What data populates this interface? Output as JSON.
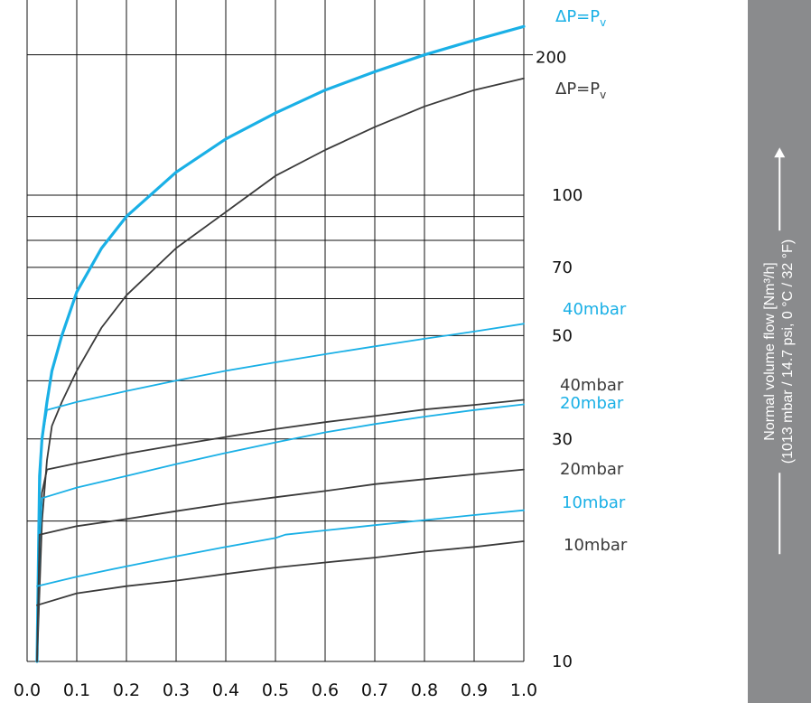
{
  "chart_data": {
    "type": "line",
    "title": "",
    "xlabel": "",
    "ylabel": "Normal volume flow [Nm³/h]",
    "ylabel_sub": "(1013 mbar / 14.7 psi, 0 °C / 32 °F)",
    "xlim": [
      0.0,
      1.0
    ],
    "ylim": [
      10,
      250
    ],
    "y_scale": "log",
    "x_ticks": [
      "0.0",
      "0.1",
      "0.2",
      "0.3",
      "0.4",
      "0.5",
      "0.6",
      "0.7",
      "0.8",
      "0.9",
      "1.0"
    ],
    "x_tick_values": [
      0.0,
      0.1,
      0.2,
      0.3,
      0.4,
      0.5,
      0.6,
      0.7,
      0.8,
      0.9,
      1.0
    ],
    "y_tick_labels": [
      {
        "value": 10,
        "label": "10"
      },
      {
        "value": 30,
        "label": "30"
      },
      {
        "value": 50,
        "label": "50"
      },
      {
        "value": 70,
        "label": "70"
      },
      {
        "value": 100,
        "label": "100"
      },
      {
        "value": 200,
        "label": "200"
      }
    ],
    "y_gridlines": [
      10,
      20,
      30,
      40,
      50,
      60,
      70,
      80,
      90,
      100,
      200
    ],
    "grid": true,
    "colors": {
      "blue": "#1ab0e6",
      "black": "#3a3a3a",
      "grid": "#111111",
      "panel": "#8a8b8d"
    },
    "series": [
      {
        "name": "ΔP=Pv",
        "color": "blue",
        "width": 3.2,
        "x": [
          0.02,
          0.025,
          0.03,
          0.04,
          0.05,
          0.07,
          0.1,
          0.15,
          0.2,
          0.3,
          0.4,
          0.5,
          0.6,
          0.7,
          0.8,
          0.9,
          1.0
        ],
        "y": [
          10,
          25,
          30,
          36,
          42,
          50,
          62,
          77,
          90,
          112,
          132,
          150,
          168,
          184,
          200,
          215,
          230
        ]
      },
      {
        "name": "ΔP=Pv",
        "color": "black",
        "width": 1.8,
        "x": [
          0.02,
          0.03,
          0.04,
          0.05,
          0.07,
          0.1,
          0.15,
          0.2,
          0.3,
          0.4,
          0.5,
          0.6,
          0.7,
          0.8,
          0.9,
          1.0
        ],
        "y": [
          10,
          20,
          27,
          32,
          36,
          42,
          52,
          61,
          77,
          92,
          110,
          125,
          140,
          155,
          168,
          178
        ]
      },
      {
        "name": "40mbar",
        "color": "blue",
        "width": 1.8,
        "x": [
          0.02,
          0.025,
          0.03,
          0.04,
          0.1,
          0.2,
          0.3,
          0.4,
          0.5,
          0.6,
          0.7,
          0.8,
          0.9,
          1.0
        ],
        "y": [
          10,
          22,
          30,
          34.6,
          36,
          38,
          40,
          42,
          43.8,
          45.6,
          47.4,
          49.2,
          51,
          53
        ]
      },
      {
        "name": "40mbar",
        "color": "black",
        "width": 1.8,
        "x": [
          0.02,
          0.025,
          0.03,
          0.04,
          0.1,
          0.2,
          0.3,
          0.4,
          0.5,
          0.6,
          0.7,
          0.8,
          0.9,
          1.0
        ],
        "y": [
          10,
          18,
          23,
          25.8,
          26.6,
          27.9,
          29.1,
          30.3,
          31.5,
          32.6,
          33.6,
          34.7,
          35.5,
          36.4
        ]
      },
      {
        "name": "20mbar",
        "color": "blue",
        "width": 1.8,
        "x": [
          0.02,
          0.025,
          0.03,
          0.1,
          0.2,
          0.3,
          0.4,
          0.5,
          0.6,
          0.7,
          0.8,
          0.9,
          1.0
        ],
        "y": [
          10,
          18,
          22.4,
          23.6,
          25,
          26.5,
          28,
          29.5,
          31,
          32.3,
          33.5,
          34.6,
          35.6
        ]
      },
      {
        "name": "20mbar",
        "color": "black",
        "width": 1.8,
        "x": [
          0.02,
          0.025,
          0.1,
          0.2,
          0.3,
          0.4,
          0.5,
          0.6,
          0.7,
          0.8,
          0.9,
          1.0
        ],
        "y": [
          10,
          18.7,
          19.5,
          20.2,
          21,
          21.8,
          22.5,
          23.2,
          24,
          24.6,
          25.2,
          25.8
        ]
      },
      {
        "name": "10mbar",
        "color": "blue",
        "width": 1.8,
        "x": [
          0.02,
          0.1,
          0.2,
          0.3,
          0.4,
          0.5,
          0.52,
          0.6,
          0.7,
          0.8,
          0.9,
          1.0
        ],
        "y": [
          14.5,
          15.2,
          16.0,
          16.8,
          17.6,
          18.4,
          18.7,
          19.1,
          19.6,
          20.1,
          20.6,
          21.1
        ]
      },
      {
        "name": "10mbar",
        "color": "black",
        "width": 1.8,
        "x": [
          0.02,
          0.1,
          0.2,
          0.3,
          0.4,
          0.5,
          0.6,
          0.7,
          0.8,
          0.9,
          1.0
        ],
        "y": [
          13.2,
          14.0,
          14.5,
          14.9,
          15.4,
          15.9,
          16.3,
          16.7,
          17.2,
          17.6,
          18.1
        ]
      }
    ],
    "series_labels": [
      {
        "text": "ΔP=P",
        "sub": "v",
        "color": "blue"
      },
      {
        "text": "ΔP=P",
        "sub": "v",
        "color": "black"
      },
      {
        "text": "40mbar",
        "color": "blue"
      },
      {
        "text": "40mbar",
        "color": "black"
      },
      {
        "text": "20mbar",
        "color": "blue"
      },
      {
        "text": "20mbar",
        "color": "black"
      },
      {
        "text": "10mbar",
        "color": "blue"
      },
      {
        "text": "10mbar",
        "color": "black"
      }
    ]
  }
}
